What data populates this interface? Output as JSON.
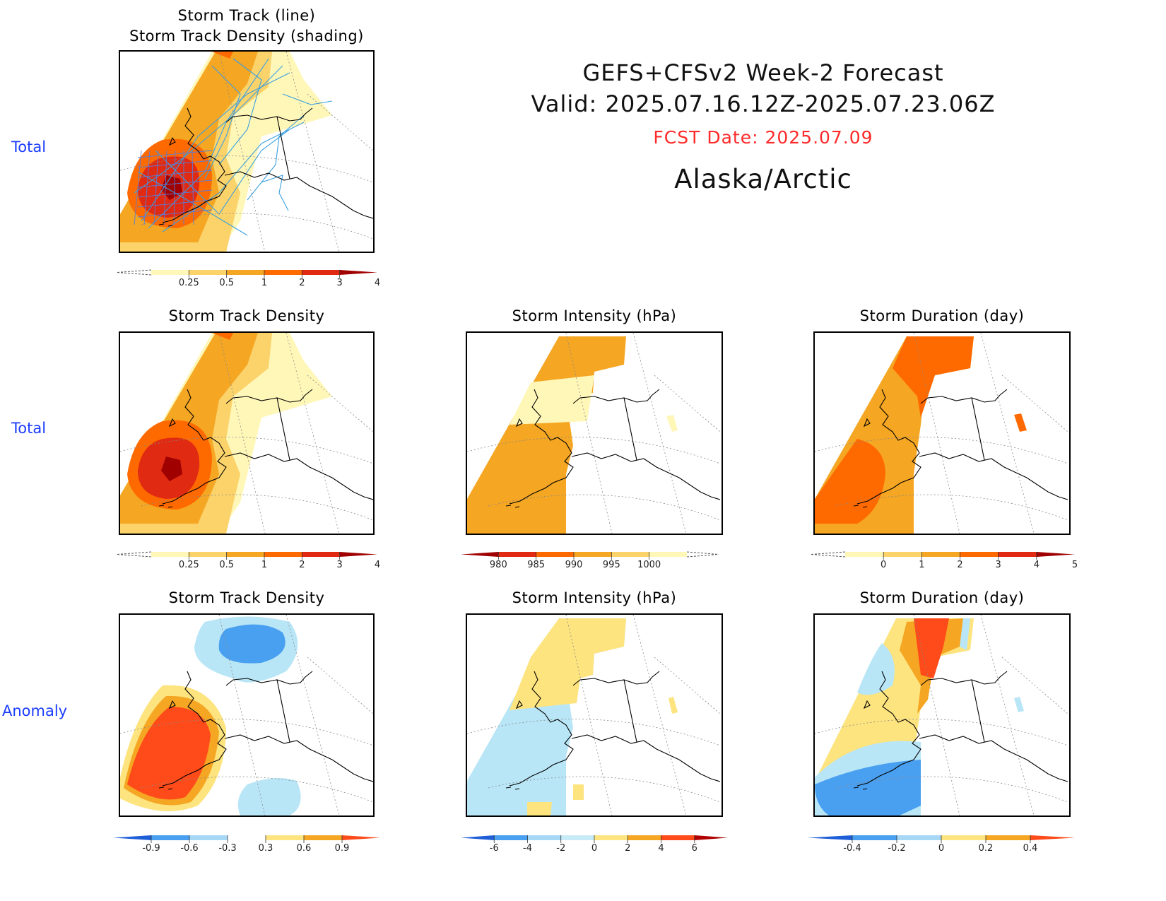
{
  "header": {
    "title": "GEFS+CFSv2 Week-2 Forecast",
    "valid": "Valid: 2025.07.16.12Z-2025.07.23.06Z",
    "fcst_date": "FCST Date: 2025.07.09",
    "region": "Alaska/Arctic",
    "fcst_color": "#ff2a2a"
  },
  "row_labels": {
    "top": "Total",
    "middle": "Total",
    "bottom": "Anomaly"
  },
  "panels": {
    "track_line": {
      "title_line1": "Storm Track (line)",
      "title_line2": "Storm Track Density (shading)"
    },
    "density_total": {
      "title": "Storm Track Density"
    },
    "intensity_total": {
      "title": "Storm Intensity (hPa)"
    },
    "duration_total": {
      "title": "Storm Duration (day)"
    },
    "density_anom": {
      "title": "Storm Track Density"
    },
    "intensity_anom": {
      "title": "Storm Intensity (hPa)"
    },
    "duration_anom": {
      "title": "Storm Duration (day)"
    }
  },
  "colorbars": {
    "density": {
      "ticks": [
        "0.25",
        "0.5",
        "1",
        "2",
        "3",
        "4"
      ],
      "colors": [
        "#fff7b8",
        "#fbd36a",
        "#f5a623",
        "#ff6a00",
        "#e02a12",
        "#a00000"
      ]
    },
    "intensity": {
      "ticks": [
        "980",
        "985",
        "990",
        "995",
        "1000"
      ],
      "colors": [
        "#a00000",
        "#e02a12",
        "#ff6a00",
        "#f5a623",
        "#fbd36a",
        "#fff7b8"
      ]
    },
    "duration": {
      "ticks": [
        "0",
        "1",
        "2",
        "3",
        "4",
        "5"
      ],
      "colors": [
        "#fff7b8",
        "#fbd36a",
        "#f5a623",
        "#ff6a00",
        "#e02a12",
        "#a00000"
      ]
    },
    "density_anom": {
      "ticks": [
        "-0.9",
        "-0.6",
        "-0.3",
        "0.3",
        "0.6",
        "0.9"
      ],
      "colors": [
        "#1e5fd8",
        "#4aa0f0",
        "#a6d8f5",
        "#ffffff",
        "#fde47f",
        "#f5a623",
        "#ff4a1a"
      ]
    },
    "intensity_anom": {
      "ticks": [
        "-6",
        "-4",
        "-2",
        "0",
        "2",
        "4",
        "6"
      ],
      "colors": [
        "#1e5fd8",
        "#4aa0f0",
        "#a6d8f5",
        "#c8ecf7",
        "#fde47f",
        "#f5a623",
        "#ff4a1a",
        "#b00000"
      ]
    },
    "duration_anom": {
      "ticks": [
        "-0.4",
        "-0.2",
        "0",
        "0.2",
        "0.4"
      ],
      "colors": [
        "#1e5fd8",
        "#4aa0f0",
        "#a6d8f5",
        "#fde47f",
        "#f5a623",
        "#ff4a1a"
      ]
    }
  }
}
